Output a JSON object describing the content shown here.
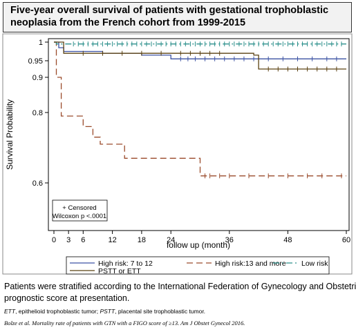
{
  "header": {
    "title_line1": "Five-year overall survival of patients with gestational trophoblastic",
    "title_line2": "neoplasia from the French cohort from 1999-2015"
  },
  "footer": {
    "caption_line1": "Patients were stratified according to the International Federation of Gynecology and Obstetrics",
    "caption_line2": "prognostic score at presentation.",
    "abbrev_ett": "ETT",
    "abbrev_ett_def": ", epithelioid trophoblastic tumor; ",
    "abbrev_pstt": "PSTT",
    "abbrev_pstt_def": ", placental site trophoblastic tumor.",
    "reference": "Bolze et al. Mortality rate of patients with GTN with a FIGO score of ≥13. Am J Obstet Gynecol 2016."
  },
  "chart_data": {
    "type": "line",
    "subtype": "kaplan-meier step",
    "xlabel": "follow up (month)",
    "ylabel": "Survival Probability",
    "xlim": [
      0,
      60
    ],
    "ylim": [
      0.55,
      1.0
    ],
    "x_ticks": [
      0,
      3,
      6,
      12,
      18,
      24,
      36,
      48,
      60
    ],
    "y_ticks": [
      0.6,
      0.8,
      0.9,
      0.95,
      1
    ],
    "y_tick_labels": [
      "0.6",
      "0.8",
      "0.9",
      "0.95",
      "1"
    ],
    "inset_line1": "+ Censored",
    "inset_line2": "Wilcoxon p <.0001",
    "legend_position": "bottom",
    "series": [
      {
        "name": "High risk: 7 to 12",
        "color": "#3b52a3",
        "dash": "solid",
        "steps": [
          [
            0,
            1
          ],
          [
            1,
            0.985
          ],
          [
            2,
            0.975
          ],
          [
            10,
            0.97
          ],
          [
            18,
            0.965
          ],
          [
            24,
            0.955
          ],
          [
            60,
            0.955
          ]
        ],
        "censored": [
          26,
          27.5,
          29,
          31,
          33,
          35,
          37,
          39,
          41,
          44,
          47,
          50,
          53,
          56,
          58
        ]
      },
      {
        "name": "High risk:13 and more",
        "color": "#9a4a2a",
        "dash": "long",
        "steps": [
          [
            0,
            1
          ],
          [
            0.5,
            0.9
          ],
          [
            1.5,
            0.79
          ],
          [
            6,
            0.76
          ],
          [
            8,
            0.73
          ],
          [
            9.5,
            0.71
          ],
          [
            14.5,
            0.67
          ],
          [
            30,
            0.62
          ],
          [
            60,
            0.62
          ]
        ],
        "censored": [
          31,
          32,
          34,
          36,
          40,
          44,
          48,
          52,
          55,
          59
        ]
      },
      {
        "name": "Low risk",
        "color": "#2a8f8a",
        "dash": "dashdot",
        "steps": [
          [
            0,
            1
          ],
          [
            0.5,
            0.995
          ],
          [
            60,
            0.995
          ]
        ],
        "censored": [
          4,
          5,
          6,
          7,
          8,
          9,
          10,
          11,
          12,
          13,
          14,
          15,
          16,
          17,
          18,
          19,
          20,
          21,
          22,
          23,
          24,
          25,
          26,
          27,
          28,
          29,
          30,
          31,
          32,
          33,
          34,
          35,
          36,
          37,
          38,
          39,
          40,
          41,
          42,
          43,
          44,
          45,
          46,
          47,
          48,
          49,
          50,
          51,
          52,
          53,
          54,
          55,
          56,
          57,
          58,
          59
        ]
      },
      {
        "name": "PSTT or ETT",
        "color": "#5a4010",
        "dash": "solid",
        "steps": [
          [
            0,
            1
          ],
          [
            2,
            0.97
          ],
          [
            24,
            0.97
          ],
          [
            41,
            0.965
          ],
          [
            42,
            0.925
          ],
          [
            60,
            0.925
          ]
        ],
        "censored": [
          6,
          10,
          14,
          18,
          22,
          26,
          28,
          30,
          32,
          34,
          44,
          46,
          48,
          50,
          52,
          54,
          56,
          58
        ]
      }
    ]
  }
}
